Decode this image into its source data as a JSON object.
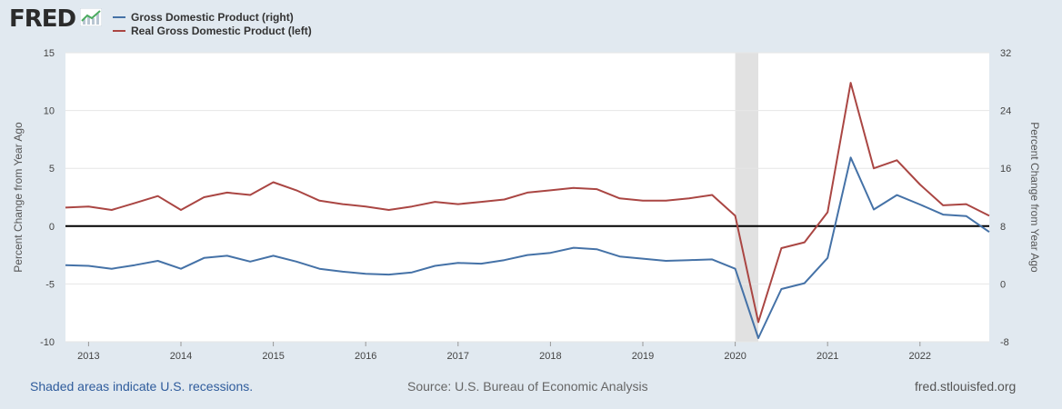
{
  "header": {
    "logo_text": "FRED",
    "logo_icon": "fred-chart-icon"
  },
  "footer": {
    "recessions_note": "Shaded areas indicate U.S. recessions.",
    "source": "Source: U.S. Bureau of Economic Analysis",
    "site": "fred.stlouisfed.org"
  },
  "chart_data": {
    "type": "line",
    "title": "",
    "xlabel": "",
    "ylabel_left": "Percent Change from Year Ago",
    "ylabel_right": "Percent Change from Year Ago",
    "x_start": 2012.75,
    "x_end": 2022.75,
    "x_ticks": [
      2013,
      2014,
      2015,
      2016,
      2017,
      2018,
      2019,
      2020,
      2021,
      2022
    ],
    "x_tick_labels": [
      "2013",
      "2014",
      "2015",
      "2016",
      "2017",
      "2018",
      "2019",
      "2020",
      "2021",
      "2022"
    ],
    "y_left": {
      "lim": [
        -10,
        15
      ],
      "ticks": [
        -10,
        -5,
        0,
        5,
        10,
        15
      ],
      "tick_labels": [
        "-10",
        "-5",
        "0",
        "5",
        "10",
        "15"
      ]
    },
    "y_right": {
      "lim": [
        -8,
        32
      ],
      "ticks": [
        -8,
        0,
        8,
        16,
        24,
        32
      ],
      "tick_labels": [
        "-8",
        "0",
        "8",
        "16",
        "24",
        "32"
      ]
    },
    "recessions": [
      [
        2020.0,
        2020.25
      ]
    ],
    "zero_line_left": 0,
    "x": [
      2012.75,
      2013.0,
      2013.25,
      2013.5,
      2013.75,
      2014.0,
      2014.25,
      2014.5,
      2014.75,
      2015.0,
      2015.25,
      2015.5,
      2015.75,
      2016.0,
      2016.25,
      2016.5,
      2016.75,
      2017.0,
      2017.25,
      2017.5,
      2017.75,
      2018.0,
      2018.25,
      2018.5,
      2018.75,
      2019.0,
      2019.25,
      2019.5,
      2019.75,
      2020.0,
      2020.25,
      2020.5,
      2020.75,
      2021.0,
      2021.25,
      2021.5,
      2021.75,
      2022.0,
      2022.25,
      2022.5,
      2022.75
    ],
    "series": [
      {
        "name": "Gross Domestic Product (right)",
        "axis": "right",
        "color": "#4572a7",
        "values": [
          2.6,
          2.5,
          2.1,
          2.6,
          3.2,
          2.1,
          3.6,
          3.9,
          3.1,
          3.9,
          3.1,
          2.1,
          1.7,
          1.4,
          1.3,
          1.6,
          2.5,
          2.9,
          2.8,
          3.3,
          4.0,
          4.3,
          5.0,
          4.8,
          3.8,
          3.5,
          3.2,
          3.3,
          3.4,
          2.1,
          -7.5,
          -0.7,
          0.1,
          3.6,
          17.5,
          10.3,
          12.3,
          11.0,
          9.6,
          9.4,
          7.2
        ]
      },
      {
        "name": "Real Gross Domestic Product (left)",
        "axis": "left",
        "color": "#aa4643",
        "values": [
          1.6,
          1.7,
          1.4,
          2.0,
          2.6,
          1.4,
          2.5,
          2.9,
          2.7,
          3.8,
          3.1,
          2.2,
          1.9,
          1.7,
          1.4,
          1.7,
          2.1,
          1.9,
          2.1,
          2.3,
          2.9,
          3.1,
          3.3,
          3.2,
          2.4,
          2.2,
          2.2,
          2.4,
          2.7,
          0.9,
          -8.3,
          -1.9,
          -1.4,
          1.2,
          12.4,
          5.0,
          5.7,
          3.6,
          1.8,
          1.9,
          0.9
        ]
      }
    ]
  }
}
